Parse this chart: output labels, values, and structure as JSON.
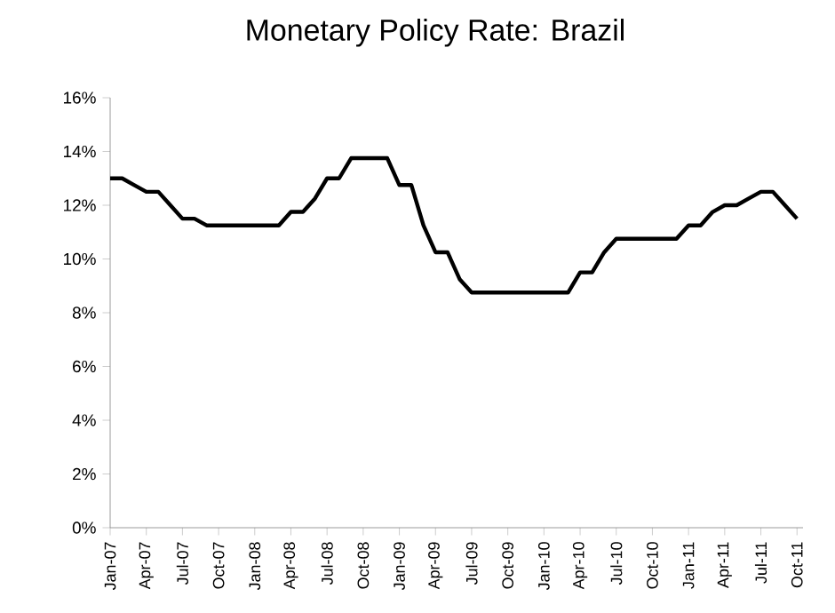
{
  "chart_data": {
    "type": "line",
    "title": "Monetary Policy Rate: Brazil",
    "categories": [
      "Jan-07",
      null,
      null,
      "Apr-07",
      null,
      null,
      "Jul-07",
      null,
      null,
      "Oct-07",
      null,
      null,
      "Jan-08",
      null,
      null,
      "Apr-08",
      null,
      null,
      "Jul-08",
      null,
      null,
      "Oct-08",
      null,
      null,
      "Jan-09",
      null,
      null,
      "Apr-09",
      null,
      null,
      "Jul-09",
      null,
      null,
      "Oct-09",
      null,
      null,
      "Jan-10",
      null,
      null,
      "Apr-10",
      null,
      null,
      "Jul-10",
      null,
      null,
      "Oct-10",
      null,
      null,
      "Jan-11",
      null,
      null,
      "Apr-11",
      null,
      null,
      "Jul-11",
      null,
      null,
      "Oct-11"
    ],
    "series": [
      {
        "color": "#000000",
        "values": [
          13.0,
          13.0,
          12.75,
          12.5,
          12.5,
          12.0,
          11.5,
          11.5,
          11.25,
          11.25,
          11.25,
          11.25,
          11.25,
          11.25,
          11.25,
          11.75,
          11.75,
          12.25,
          13.0,
          13.0,
          13.75,
          13.75,
          13.75,
          13.75,
          12.75,
          12.75,
          11.25,
          10.25,
          10.25,
          9.25,
          8.75,
          8.75,
          8.75,
          8.75,
          8.75,
          8.75,
          8.75,
          8.75,
          8.75,
          9.5,
          9.5,
          10.25,
          10.75,
          10.75,
          10.75,
          10.75,
          10.75,
          10.75,
          11.25,
          11.25,
          11.75,
          12.0,
          12.0,
          12.25,
          12.5,
          12.5,
          12.0,
          11.5
        ]
      }
    ],
    "ylim": [
      0,
      16
    ],
    "yticks": [
      {
        "value": 0,
        "label": "0%"
      },
      {
        "value": 2,
        "label": "2%"
      },
      {
        "value": 4,
        "label": "4%"
      },
      {
        "value": 6,
        "label": "6%"
      },
      {
        "value": 8,
        "label": "8%"
      },
      {
        "value": 10,
        "label": "10%"
      },
      {
        "value": 12,
        "label": "12%"
      },
      {
        "value": 14,
        "label": "14%"
      },
      {
        "value": 16,
        "label": "16%"
      }
    ],
    "marker": "none",
    "line_style": "solid"
  }
}
